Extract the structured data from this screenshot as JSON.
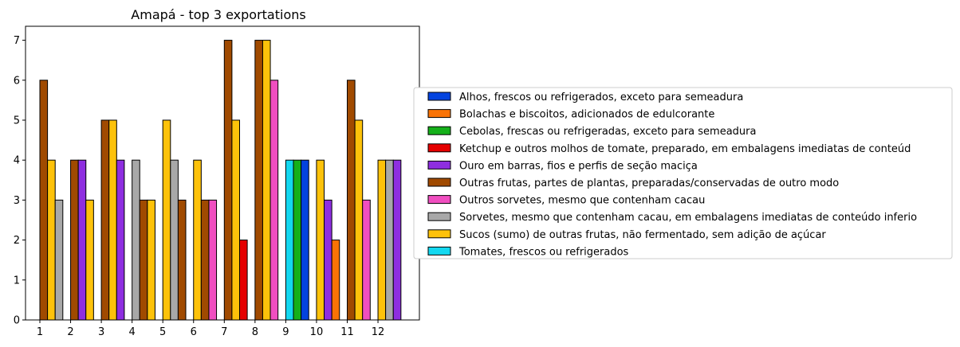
{
  "chart_data": {
    "type": "bar",
    "title": "Amapá - top 3 exportations",
    "xlabel": "",
    "ylabel": "",
    "ylim": [
      0,
      7.35
    ],
    "yticks": [
      0,
      1,
      2,
      3,
      4,
      5,
      6,
      7
    ],
    "x_ticks": [
      "1",
      "2",
      "3",
      "4",
      "5",
      "6",
      "7",
      "8",
      "9",
      "10",
      "11",
      "12"
    ],
    "grid": false,
    "legend_position": "right",
    "legend": [
      {
        "name": "Alhos, frescos ou refrigerados, exceto para semeadura",
        "color": "#0343df"
      },
      {
        "name": "Bolachas e biscoitos, adicionados de edulcorante",
        "color": "#f97306"
      },
      {
        "name": "Cebolas, frescas ou refrigeradas, exceto para semeadura",
        "color": "#15b01a"
      },
      {
        "name": "Ketchup e outros molhos de tomate, preparado, em embalagens imediatas de conteúd",
        "color": "#e50000"
      },
      {
        "name": "Ouro em barras, fios e perfis de seção maciça",
        "color": "#8e2ee0"
      },
      {
        "name": "Outras frutas, partes de plantas, preparadas/conservadas de outro modo",
        "color": "#a04a00"
      },
      {
        "name": "Outros sorvetes, mesmo que contenham cacau",
        "color": "#f04ec0"
      },
      {
        "name": "Sorvetes, mesmo que contenham cacau, em embalagens imediatas de conteúdo inferio",
        "color": "#a8a8a8"
      },
      {
        "name": "Sucos (sumo) de outras frutas, não fermentado, sem adição de açúcar",
        "color": "#fdc20a"
      },
      {
        "name": "Tomates, frescos ou refrigerados",
        "color": "#13d8f0"
      }
    ],
    "groups": [
      {
        "x": "1",
        "bars": [
          {
            "series": 5,
            "value": 6
          },
          {
            "series": 8,
            "value": 4
          },
          {
            "series": 7,
            "value": 3
          }
        ]
      },
      {
        "x": "2",
        "bars": [
          {
            "series": 5,
            "value": 4
          },
          {
            "series": 4,
            "value": 4
          },
          {
            "series": 8,
            "value": 3
          }
        ]
      },
      {
        "x": "3",
        "bars": [
          {
            "series": 5,
            "value": 5
          },
          {
            "series": 8,
            "value": 5
          },
          {
            "series": 4,
            "value": 4
          }
        ]
      },
      {
        "x": "4",
        "bars": [
          {
            "series": 7,
            "value": 4
          },
          {
            "series": 5,
            "value": 3
          },
          {
            "series": 8,
            "value": 3
          }
        ]
      },
      {
        "x": "5",
        "bars": [
          {
            "series": 8,
            "value": 5
          },
          {
            "series": 7,
            "value": 4
          },
          {
            "series": 5,
            "value": 3
          }
        ]
      },
      {
        "x": "6",
        "bars": [
          {
            "series": 8,
            "value": 4
          },
          {
            "series": 5,
            "value": 3
          },
          {
            "series": 6,
            "value": 3
          }
        ]
      },
      {
        "x": "7",
        "bars": [
          {
            "series": 5,
            "value": 7
          },
          {
            "series": 8,
            "value": 5
          },
          {
            "series": 3,
            "value": 2
          }
        ]
      },
      {
        "x": "8",
        "bars": [
          {
            "series": 5,
            "value": 7
          },
          {
            "series": 8,
            "value": 7
          },
          {
            "series": 6,
            "value": 6
          }
        ]
      },
      {
        "x": "9",
        "bars": [
          {
            "series": 9,
            "value": 4
          },
          {
            "series": 2,
            "value": 4
          },
          {
            "series": 0,
            "value": 4
          }
        ]
      },
      {
        "x": "10",
        "bars": [
          {
            "series": 8,
            "value": 4
          },
          {
            "series": 4,
            "value": 3
          },
          {
            "series": 1,
            "value": 2
          }
        ]
      },
      {
        "x": "11",
        "bars": [
          {
            "series": 5,
            "value": 6
          },
          {
            "series": 8,
            "value": 5
          },
          {
            "series": 6,
            "value": 3
          }
        ]
      },
      {
        "x": "12",
        "bars": [
          {
            "series": 8,
            "value": 4
          },
          {
            "series": 7,
            "value": 4
          },
          {
            "series": 4,
            "value": 4
          }
        ]
      }
    ]
  }
}
